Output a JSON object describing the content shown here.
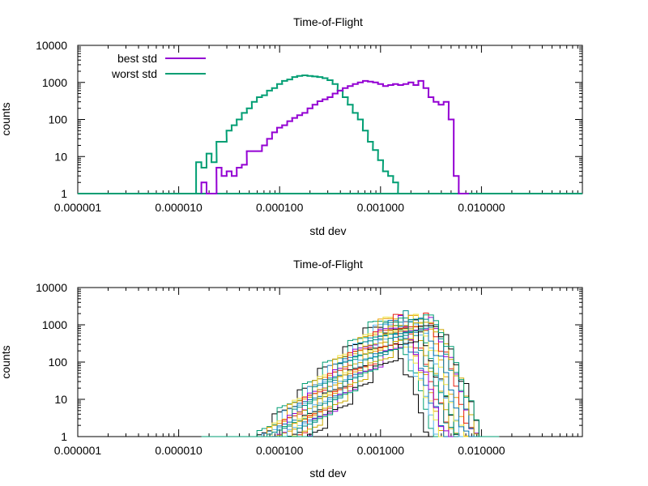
{
  "chart_data": [
    {
      "type": "line",
      "title": "Time-of-Flight",
      "xlabel": "std dev",
      "ylabel": "counts",
      "xscale": "log",
      "yscale": "log",
      "xlim": [
        1e-06,
        0.1
      ],
      "ylim": [
        1,
        10000
      ],
      "x_tick_labels": [
        "0.000001",
        "0.000010",
        "0.000100",
        "0.001000",
        "0.010000"
      ],
      "y_tick_labels": [
        "1",
        "10",
        "100",
        "1000",
        "10000"
      ],
      "legend_position": "top-left",
      "grid": false,
      "series": [
        {
          "name": "best std",
          "color": "#9400d3",
          "x": [
            1.78e-05,
            2e-05,
            2.24e-05,
            2.51e-05,
            2.82e-05,
            3.16e-05,
            3.55e-05,
            3.98e-05,
            4.47e-05,
            5.01e-05,
            5.62e-05,
            6.31e-05,
            7.08e-05,
            7.94e-05,
            8.91e-05,
            0.0001,
            0.000112,
            0.000126,
            0.000141,
            0.000158,
            0.000178,
            0.0002,
            0.000224,
            0.000251,
            0.000282,
            0.000316,
            0.000355,
            0.000398,
            0.000447,
            0.000501,
            0.000562,
            0.000631,
            0.000708,
            0.000794,
            0.000891,
            0.001,
            0.00112,
            0.00126,
            0.00141,
            0.00158,
            0.00178,
            0.002,
            0.00224,
            0.00251,
            0.00282,
            0.00316,
            0.00355,
            0.00398,
            0.00447,
            0.00501,
            0.00562,
            0.00631,
            0.00708
          ],
          "values": [
            2,
            1,
            1,
            5,
            3,
            4,
            3,
            5,
            6,
            14,
            14,
            14,
            20,
            30,
            45,
            60,
            70,
            90,
            110,
            130,
            150,
            200,
            250,
            310,
            350,
            400,
            500,
            600,
            700,
            800,
            900,
            1000,
            1100,
            1050,
            1000,
            900,
            800,
            850,
            900,
            850,
            900,
            1000,
            850,
            1100,
            700,
            400,
            300,
            250,
            300,
            100,
            3,
            1,
            1
          ]
        },
        {
          "name": "worst std",
          "color": "#009e73",
          "x": [
            1.58e-05,
            1.78e-05,
            2e-05,
            2.24e-05,
            2.51e-05,
            2.82e-05,
            3.16e-05,
            3.55e-05,
            3.98e-05,
            4.47e-05,
            5.01e-05,
            5.62e-05,
            6.31e-05,
            7.08e-05,
            7.94e-05,
            8.91e-05,
            0.0001,
            0.000112,
            0.000126,
            0.000141,
            0.000158,
            0.000178,
            0.0002,
            0.000224,
            0.000251,
            0.000282,
            0.000316,
            0.000355,
            0.000398,
            0.000447,
            0.000501,
            0.000562,
            0.000631,
            0.000708,
            0.000794,
            0.000891,
            0.001,
            0.00112,
            0.00126,
            0.00141,
            0.00158,
            0.00178
          ],
          "values": [
            7,
            5,
            12,
            7,
            25,
            25,
            50,
            70,
            100,
            150,
            200,
            300,
            400,
            450,
            600,
            700,
            900,
            1100,
            1200,
            1400,
            1500,
            1550,
            1500,
            1450,
            1400,
            1300,
            1150,
            900,
            600,
            400,
            250,
            150,
            100,
            50,
            25,
            15,
            8,
            4,
            3,
            2,
            1,
            1
          ]
        }
      ]
    },
    {
      "type": "line",
      "title": "Time-of-Flight",
      "xlabel": "std dev",
      "ylabel": "counts",
      "xscale": "log",
      "yscale": "log",
      "xlim": [
        1e-06,
        0.1
      ],
      "ylim": [
        1,
        10000
      ],
      "x_tick_labels": [
        "0.000001",
        "0.000010",
        "0.000100",
        "0.001000",
        "0.010000"
      ],
      "y_tick_labels": [
        "1",
        "10",
        "100",
        "1000",
        "10000"
      ],
      "grid": false,
      "series_description": "many overlapping histogram series",
      "series_colors": [
        "#000000",
        "#009e73",
        "#56b4e9",
        "#e69f00",
        "#f0e442",
        "#0072b2",
        "#e51e10",
        "#9400d3",
        "#008b8b",
        "#c9a800"
      ],
      "approx_peak_range": [
        0.001,
        0.004
      ],
      "approx_peak_counts": [
        1000,
        2000
      ]
    }
  ]
}
